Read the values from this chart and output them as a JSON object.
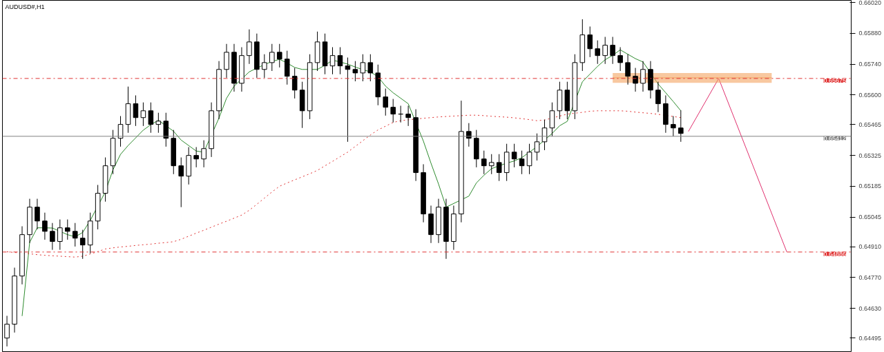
{
  "chart_data": {
    "type": "candlestick",
    "title": "AUDUSD#,H1",
    "categories": [
      null,
      null,
      null,
      null,
      null,
      null,
      null,
      null,
      null,
      null,
      null,
      null,
      null,
      null,
      null,
      null,
      null,
      null,
      null,
      null,
      null,
      null,
      null,
      null,
      null,
      null,
      null,
      null,
      null,
      null,
      null,
      null,
      null,
      null,
      null,
      null,
      null,
      null,
      null,
      null,
      null,
      null,
      null,
      null,
      null,
      null,
      null,
      null,
      null,
      null,
      null,
      null,
      null,
      null,
      null,
      null,
      null,
      null,
      null,
      null,
      null,
      null,
      null,
      null,
      null,
      null,
      null,
      null,
      null,
      null,
      null,
      null,
      null,
      null,
      null,
      null,
      null,
      null,
      null,
      null,
      null,
      null,
      null,
      null,
      null,
      null,
      null,
      null,
      null,
      null,
      null,
      null,
      null,
      null,
      null,
      null,
      null,
      null,
      null,
      null,
      null,
      null,
      null,
      null
    ],
    "ohlc": [
      [
        0.64495,
        0.64596,
        0.64457,
        0.64558
      ],
      [
        0.64558,
        0.64815,
        0.6452,
        0.64777
      ],
      [
        0.64777,
        0.65003,
        0.64739,
        0.64965
      ],
      [
        0.64965,
        0.65128,
        0.64927,
        0.6509
      ],
      [
        0.6509,
        0.65128,
        0.64989,
        0.65027
      ],
      [
        0.65027,
        0.65065,
        0.64942,
        0.6498
      ],
      [
        0.6498,
        0.65018,
        0.64896,
        0.64934
      ],
      [
        0.64934,
        0.65034,
        0.64896,
        0.64996
      ],
      [
        0.64996,
        0.65034,
        0.64942,
        0.6498
      ],
      [
        0.6498,
        0.65018,
        0.64911,
        0.64949
      ],
      [
        0.64949,
        0.64987,
        0.64855,
        0.64918
      ],
      [
        0.64918,
        0.65065,
        0.6488,
        0.65027
      ],
      [
        0.65027,
        0.65191,
        0.64989,
        0.65153
      ],
      [
        0.65153,
        0.65316,
        0.65115,
        0.65278
      ],
      [
        0.65278,
        0.65441,
        0.6524,
        0.65403
      ],
      [
        0.65403,
        0.65504,
        0.65365,
        0.65466
      ],
      [
        0.65466,
        0.65638,
        0.65428,
        0.6556
      ],
      [
        0.6556,
        0.65598,
        0.65459,
        0.65497
      ],
      [
        0.65497,
        0.65566,
        0.65459,
        0.65528
      ],
      [
        0.65528,
        0.65566,
        0.65428,
        0.65466
      ],
      [
        0.65466,
        0.65519,
        0.65428,
        0.65481
      ],
      [
        0.65481,
        0.65519,
        0.65365,
        0.65403
      ],
      [
        0.65403,
        0.65441,
        0.6524,
        0.65278
      ],
      [
        0.65278,
        0.65316,
        0.6509,
        0.65231
      ],
      [
        0.65231,
        0.65363,
        0.65193,
        0.65325
      ],
      [
        0.65325,
        0.65363,
        0.65271,
        0.65309
      ],
      [
        0.65309,
        0.65394,
        0.65271,
        0.65356
      ],
      [
        0.65356,
        0.65566,
        0.65318,
        0.65528
      ],
      [
        0.65528,
        0.65754,
        0.6549,
        0.65716
      ],
      [
        0.65716,
        0.65832,
        0.65678,
        0.65794
      ],
      [
        0.65794,
        0.65832,
        0.65615,
        0.65653
      ],
      [
        0.65653,
        0.65817,
        0.65615,
        0.65779
      ],
      [
        0.65779,
        0.65898,
        0.65741,
        0.65841
      ],
      [
        0.65841,
        0.65879,
        0.65678,
        0.65716
      ],
      [
        0.65716,
        0.65785,
        0.65678,
        0.65747
      ],
      [
        0.65747,
        0.65832,
        0.65709,
        0.65794
      ],
      [
        0.65794,
        0.65832,
        0.65725,
        0.65763
      ],
      [
        0.65763,
        0.65801,
        0.65647,
        0.65685
      ],
      [
        0.65685,
        0.65723,
        0.65584,
        0.65622
      ],
      [
        0.65622,
        0.6566,
        0.6545,
        0.65528
      ],
      [
        0.65528,
        0.65785,
        0.6549,
        0.65747
      ],
      [
        0.65747,
        0.65888,
        0.65709,
        0.65841
      ],
      [
        0.65841,
        0.65879,
        0.65694,
        0.65732
      ],
      [
        0.65732,
        0.65817,
        0.65694,
        0.65779
      ],
      [
        0.65779,
        0.65817,
        0.65694,
        0.65732
      ],
      [
        0.65732,
        0.6577,
        0.65387,
        0.65716
      ],
      [
        0.65716,
        0.65754,
        0.65662,
        0.657
      ],
      [
        0.657,
        0.65785,
        0.65662,
        0.65747
      ],
      [
        0.65747,
        0.65785,
        0.65662,
        0.657
      ],
      [
        0.657,
        0.65738,
        0.65553,
        0.65591
      ],
      [
        0.65591,
        0.65629,
        0.65506,
        0.65544
      ],
      [
        0.65544,
        0.65582,
        0.65475,
        0.65513
      ],
      [
        0.65513,
        0.65551,
        0.65475,
        0.65513
      ],
      [
        0.65513,
        0.65551,
        0.65459,
        0.65497
      ],
      [
        0.65497,
        0.65535,
        0.65209,
        0.65247
      ],
      [
        0.65247,
        0.65285,
        0.65021,
        0.65059
      ],
      [
        0.65059,
        0.65097,
        0.64927,
        0.64965
      ],
      [
        0.64965,
        0.65128,
        0.64927,
        0.6509
      ],
      [
        0.6509,
        0.65128,
        0.64855,
        0.64934
      ],
      [
        0.64934,
        0.65097,
        0.64896,
        0.65059
      ],
      [
        0.65059,
        0.65574,
        0.65021,
        0.65434
      ],
      [
        0.65434,
        0.65472,
        0.65365,
        0.65403
      ],
      [
        0.65403,
        0.65441,
        0.65271,
        0.65309
      ],
      [
        0.65309,
        0.65347,
        0.6524,
        0.65278
      ],
      [
        0.65278,
        0.65331,
        0.6524,
        0.65293
      ],
      [
        0.65293,
        0.65331,
        0.65209,
        0.65247
      ],
      [
        0.65247,
        0.65378,
        0.65209,
        0.6534
      ],
      [
        0.6534,
        0.65378,
        0.65271,
        0.65309
      ],
      [
        0.65309,
        0.65347,
        0.6524,
        0.65278
      ],
      [
        0.65278,
        0.65378,
        0.6524,
        0.6534
      ],
      [
        0.6534,
        0.65425,
        0.65302,
        0.65387
      ],
      [
        0.65387,
        0.65488,
        0.65349,
        0.6545
      ],
      [
        0.6545,
        0.65566,
        0.65412,
        0.65528
      ],
      [
        0.65528,
        0.6566,
        0.6549,
        0.65622
      ],
      [
        0.65622,
        0.6566,
        0.6549,
        0.65528
      ],
      [
        0.65528,
        0.65785,
        0.6549,
        0.65747
      ],
      [
        0.65747,
        0.65944,
        0.65709,
        0.65873
      ],
      [
        0.65873,
        0.65911,
        0.65772,
        0.6581
      ],
      [
        0.6581,
        0.65848,
        0.65741,
        0.65779
      ],
      [
        0.65779,
        0.65864,
        0.65741,
        0.65826
      ],
      [
        0.65826,
        0.65864,
        0.65741,
        0.65779
      ],
      [
        0.65779,
        0.65817,
        0.65709,
        0.65747
      ],
      [
        0.65747,
        0.65785,
        0.65647,
        0.65685
      ],
      [
        0.65685,
        0.65723,
        0.65615,
        0.65653
      ],
      [
        0.65653,
        0.65754,
        0.65615,
        0.65716
      ],
      [
        0.65716,
        0.65754,
        0.65584,
        0.65622
      ],
      [
        0.65622,
        0.6566,
        0.65522,
        0.6556
      ],
      [
        0.6556,
        0.65598,
        0.65428,
        0.65466
      ],
      [
        0.65466,
        0.65504,
        0.65412,
        0.6545
      ],
      [
        0.6545,
        0.6553,
        0.65387,
        0.65425
      ],
      null,
      null,
      null,
      null,
      null,
      null,
      null,
      null,
      null,
      null,
      null,
      null,
      null,
      null
    ],
    "series": [
      {
        "type": "line",
        "color": "#2e8b2e",
        "line_style": "solid",
        "values": [
          null,
          null,
          0.64595,
          0.6493,
          0.64996,
          0.64996,
          0.64995,
          0.6498,
          0.64965,
          0.64955,
          0.64975,
          0.6503,
          null,
          0.6516,
          0.6526,
          0.6533,
          0.6537,
          0.65405,
          0.6544,
          0.65465,
          0.65485,
          null,
          0.65435,
          0.65395,
          0.6537,
          0.65345,
          0.6534,
          null,
          0.65495,
          0.65585,
          0.6564,
          null,
          0.65705,
          0.65722,
          0.65738,
          0.65752,
          0.65762,
          0.65745,
          0.65725,
          0.65716,
          0.65716,
          0.65716,
          0.65735,
          0.65758,
          0.6575,
          0.6574,
          0.65727,
          0.65715,
          0.65705,
          0.65683,
          0.6564,
          0.6561,
          0.65585,
          0.6556,
          null,
          0.6539,
          0.6529,
          0.65195,
          0.6509,
          null,
          null,
          0.6514,
          0.652,
          0.65235,
          0.65265,
          0.65278,
          0.6529,
          0.653,
          0.65315,
          0.6534,
          0.65365,
          0.65395,
          0.65425,
          0.6546,
          0.6548,
          null,
          0.6566,
          0.65695,
          0.6573,
          0.6576,
          0.6578,
          0.65805,
          0.65785,
          0.65765,
          0.6575,
          null,
          0.6565,
          0.6561,
          0.6557,
          0.65528,
          null,
          null,
          null,
          null,
          null,
          null,
          null,
          null,
          null,
          null,
          null,
          null,
          null,
          null
        ]
      },
      {
        "type": "line",
        "color": "#e03030",
        "line_style": "dotted",
        "values": [
          0.64887,
          0.64884,
          0.64881,
          0.64878,
          0.64874,
          0.64871,
          0.64869,
          0.64867,
          0.64865,
          0.64863,
          0.64867,
          0.64877,
          0.64888,
          0.649,
          0.64905,
          0.64909,
          0.64912,
          0.64916,
          0.64919,
          0.64922,
          0.64926,
          0.64929,
          0.64933,
          0.64944,
          0.64958,
          0.64972,
          0.64985,
          0.64999,
          0.65013,
          0.65026,
          0.6504,
          0.65054,
          0.65076,
          0.65103,
          0.65131,
          0.65159,
          0.65185,
          0.652,
          0.65214,
          0.65228,
          0.65242,
          0.65257,
          0.65278,
          0.65298,
          0.65319,
          0.6534,
          0.65366,
          0.65392,
          0.65418,
          0.65441,
          0.65458,
          0.65475,
          0.65483,
          0.65487,
          null,
          0.65494,
          0.65497,
          0.655,
          0.65502,
          0.65504,
          0.65506,
          0.65508,
          0.65508,
          0.65506,
          0.65503,
          0.65501,
          0.65499,
          0.65496,
          0.65492,
          0.65488,
          0.65483,
          0.65486,
          0.65495,
          0.65504,
          0.65513,
          0.65517,
          0.65521,
          0.65526,
          0.65528,
          0.65528,
          0.65528,
          0.65528,
          0.65526,
          0.65522,
          0.65519,
          0.65516,
          0.65512,
          0.65507,
          0.65502,
          0.65497,
          null,
          null,
          null,
          null,
          null,
          null,
          null,
          null,
          null,
          null,
          null,
          null,
          null,
          null
        ]
      },
      {
        "type": "line",
        "color": "#e0306e",
        "line_style": "solid",
        "values": [
          null,
          null,
          null,
          null,
          null,
          null,
          null,
          null,
          null,
          null,
          null,
          null,
          null,
          null,
          null,
          null,
          null,
          null,
          null,
          null,
          null,
          null,
          null,
          null,
          null,
          null,
          null,
          null,
          null,
          null,
          null,
          null,
          null,
          null,
          null,
          null,
          null,
          null,
          null,
          null,
          null,
          null,
          null,
          null,
          null,
          null,
          null,
          null,
          null,
          null,
          null,
          null,
          null,
          null,
          null,
          null,
          null,
          null,
          null,
          null,
          null,
          null,
          null,
          null,
          null,
          null,
          null,
          null,
          null,
          null,
          null,
          null,
          null,
          null,
          null,
          null,
          null,
          null,
          null,
          null,
          null,
          null,
          null,
          null,
          null,
          null,
          null,
          null,
          null,
          null,
          0.65434,
          null,
          null,
          null,
          0.65675,
          null,
          null,
          null,
          null,
          null,
          null,
          null,
          null,
          0.64886
        ]
      },
      {
        "type": "line",
        "color": "#f4a460",
        "line_style": "solid",
        "values": [
          null,
          null,
          null,
          null,
          null,
          null,
          null,
          null,
          null,
          null,
          null,
          null,
          null,
          null,
          null,
          null,
          null,
          null,
          null,
          null,
          null,
          null,
          null,
          null,
          null,
          null,
          null,
          null,
          null,
          null,
          null,
          null,
          null,
          null,
          null,
          null,
          null,
          null,
          null,
          null,
          null,
          null,
          null,
          null,
          null,
          null,
          null,
          null,
          null,
          null,
          null,
          null,
          null,
          null,
          null,
          null,
          null,
          null,
          null,
          null,
          null,
          null,
          null,
          null,
          null,
          null,
          null,
          null,
          null,
          null,
          null,
          null,
          null,
          null,
          null,
          null,
          null,
          null,
          null,
          null,
          0.65678,
          0.65678,
          null,
          0.65678,
          null,
          null,
          0.65678,
          0.65678,
          0.65678,
          0.65678,
          0.65678,
          0.65678,
          0.65678,
          0.65678,
          0.65678,
          0.65678,
          0.65678,
          0.65678,
          0.65678,
          0.65678,
          0.65678,
          0.65678,
          null,
          null
        ],
        "upper": [
          null,
          null,
          null,
          null,
          null,
          null,
          null,
          null,
          null,
          null,
          null,
          null,
          null,
          null,
          null,
          null,
          null,
          null,
          null,
          null,
          null,
          null,
          null,
          null,
          null,
          null,
          null,
          null,
          null,
          null,
          null,
          null,
          null,
          null,
          null,
          null,
          null,
          null,
          null,
          null,
          null,
          null,
          null,
          null,
          null,
          null,
          null,
          null,
          null,
          null,
          null,
          null,
          null,
          null,
          null,
          null,
          null,
          null,
          null,
          null,
          null,
          null,
          null,
          null,
          null,
          null,
          null,
          null,
          null,
          null,
          null,
          null,
          null,
          null,
          null,
          null,
          null,
          null,
          null,
          null,
          0.657,
          0.657,
          null,
          0.657,
          null,
          null,
          0.657,
          0.657,
          0.657,
          0.657,
          0.657,
          0.657,
          0.657,
          0.657,
          0.657,
          0.657,
          0.657,
          0.657,
          0.657,
          0.657,
          0.657,
          0.657,
          null,
          null
        ],
        "lower": [
          null,
          null,
          null,
          null,
          null,
          null,
          null,
          null,
          null,
          null,
          null,
          null,
          null,
          null,
          null,
          null,
          null,
          null,
          null,
          null,
          null,
          null,
          null,
          null,
          null,
          null,
          null,
          null,
          null,
          null,
          null,
          null,
          null,
          null,
          null,
          null,
          null,
          null,
          null,
          null,
          null,
          null,
          null,
          null,
          null,
          null,
          null,
          null,
          null,
          null,
          null,
          null,
          null,
          null,
          null,
          null,
          null,
          null,
          null,
          null,
          null,
          null,
          null,
          null,
          null,
          null,
          null,
          null,
          null,
          null,
          null,
          null,
          null,
          null,
          null,
          null,
          null,
          null,
          null,
          null,
          0.65655,
          0.65655,
          null,
          0.65655,
          null,
          null,
          0.65655,
          0.65655,
          0.65655,
          0.65655,
          0.65655,
          0.65655,
          0.65655,
          0.65655,
          0.65655,
          0.65655,
          0.65655,
          0.65655,
          0.65655,
          0.65655,
          0.65655,
          0.65655,
          null,
          null
        ]
      }
    ],
    "ylim": [
      0.6443,
      0.6603
    ],
    "yticks": [
      {
        "value": 0.6602,
        "label": "0.66020"
      },
      {
        "value": 0.6588,
        "label": "0.65880"
      },
      {
        "value": 0.6574,
        "label": "0.65740"
      },
      {
        "value": 0.656,
        "label": "0.65600"
      },
      {
        "value": 0.65465,
        "label": "0.65465"
      },
      {
        "value": 0.65325,
        "label": "0.65325"
      },
      {
        "value": 0.65185,
        "label": "0.65185"
      },
      {
        "value": 0.65045,
        "label": "0.65045"
      },
      {
        "value": 0.6491,
        "label": "0.64910"
      },
      {
        "value": 0.6477,
        "label": "0.64770"
      },
      {
        "value": 0.6463,
        "label": "0.64630"
      },
      {
        "value": 0.64495,
        "label": "0.64495"
      }
    ],
    "ref_lines": [
      {
        "axis": "y",
        "value": 0.65675,
        "label": "0.65675",
        "color": "#e03030",
        "line_style": "dashed"
      },
      {
        "axis": "y",
        "value": 0.64886,
        "label": "0.64886",
        "color": "#e03030",
        "line_style": "dashed"
      },
      {
        "axis": "y",
        "value": 0.65412,
        "label": "0.65412",
        "color": "#808080",
        "line_style": "solid"
      }
    ],
    "tick_labels": "y",
    "grid": false
  }
}
